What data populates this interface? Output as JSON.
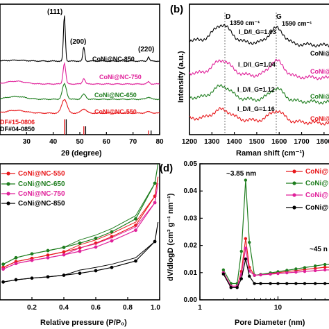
{
  "colors": {
    "c550": "#e8191c",
    "c650": "#1e7d1e",
    "c750": "#e0209a",
    "c850": "#000000"
  },
  "chart_data": [
    {
      "panel": "",
      "type": "line",
      "xlabel": "2θ (degree)",
      "xlim": [
        20,
        80
      ],
      "xticks": [
        "30",
        "40",
        "50",
        "60",
        "70",
        "80"
      ],
      "peaks": [
        {
          "label": "(111)",
          "x": 44.2
        },
        {
          "label": "(200)",
          "x": 51.5
        },
        {
          "label": "(220)",
          "x": 75.8
        }
      ],
      "series": [
        {
          "name": "CoNi@NC-850",
          "color": "#000000"
        },
        {
          "name": "CoNi@NC-750",
          "color": "#e0209a"
        },
        {
          "name": "CoNi@NC-650",
          "color": "#1e7d1e"
        },
        {
          "name": "CoNi@NC-550",
          "color": "#e8191c"
        }
      ],
      "references": [
        {
          "label": "DF#15-0806",
          "lines": [
            44.2,
            51.5,
            75.8
          ]
        },
        {
          "label": "DF#04-0850",
          "lines": [
            44.5,
            51.8,
            76.4
          ]
        }
      ]
    },
    {
      "panel": "(b)",
      "type": "line",
      "xlabel": "Raman shift (cm⁻¹)",
      "ylabel": "Intensity (a.u.)",
      "xlim": [
        1200,
        1850
      ],
      "xticks": [
        "1200",
        "1300",
        "1400",
        "1500",
        "1600",
        "1700",
        "1800"
      ],
      "band_lines": [
        {
          "label": "D",
          "x": 1350,
          "value": "1350 cm⁻¹"
        },
        {
          "label": "G",
          "x": 1590,
          "value": "1590 cm⁻¹"
        }
      ],
      "ratio_label": "I_D/I_G",
      "series": [
        {
          "name": "CoNi@",
          "color": "#000000",
          "ratio": "=1.03"
        },
        {
          "name": "CoNi@",
          "color": "#e0209a",
          "ratio": "=1.04"
        },
        {
          "name": "CoNi@",
          "color": "#1e7d1e",
          "ratio": "=1.12"
        },
        {
          "name": "CoNi@",
          "color": "#e8191c",
          "ratio": "=1.16"
        }
      ]
    },
    {
      "panel": "",
      "type": "line",
      "xlabel": "Relative pressure (P/P₀)",
      "xlim": [
        0,
        1.0
      ],
      "xticks": [
        "0.2",
        "0.4",
        "0.6",
        "0.8",
        "1.0"
      ],
      "series": [
        {
          "name": "CoNi@NC-550",
          "color": "#e8191c",
          "y": [
            100,
            118,
            128,
            138,
            148,
            160,
            175,
            195,
            230,
            320
          ]
        },
        {
          "name": "CoNi@NC-650",
          "color": "#1e7d1e",
          "y": [
            110,
            130,
            142,
            152,
            162,
            175,
            190,
            210,
            250,
            360
          ]
        },
        {
          "name": "CoNi@NC-750",
          "color": "#e0209a",
          "y": [
            95,
            112,
            122,
            130,
            139,
            150,
            163,
            182,
            215,
            300
          ]
        },
        {
          "name": "CoNi@NC-850",
          "color": "#000000",
          "y": [
            55,
            62,
            67,
            71,
            76,
            82,
            90,
            100,
            120,
            180
          ]
        }
      ]
    },
    {
      "panel": "(d)",
      "type": "line",
      "xlabel": "Pore Diameter (nm)",
      "ylabel": "dV/dlogD (cm³ g⁻¹ nm⁻¹)",
      "xscale": "log",
      "xlim": [
        1,
        60
      ],
      "ylim": [
        0,
        0.05
      ],
      "xticks": [
        "1",
        "10"
      ],
      "yticks": [
        "0.00",
        "0.01",
        "0.02",
        "0.03",
        "0.04",
        "0.05"
      ],
      "annotations": [
        "~3.85 nm",
        "~45 n"
      ],
      "series": [
        {
          "name": "CoNi@",
          "color": "#e8191c"
        },
        {
          "name": "CoNi@",
          "color": "#1e7d1e"
        },
        {
          "name": "CoNi@",
          "color": "#e0209a"
        },
        {
          "name": "CoNi@",
          "color": "#000000"
        }
      ]
    }
  ]
}
